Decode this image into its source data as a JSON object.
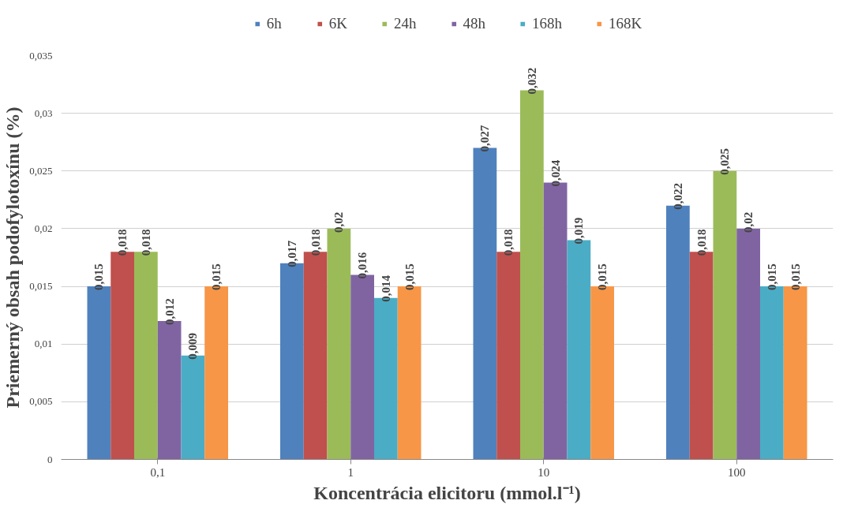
{
  "chart_data": {
    "type": "bar",
    "xlabel": "Koncentrácia elicitoru (mmol.l⁻¹)",
    "ylabel": "Priemerný obsah podofylotoxínu (%)",
    "categories": [
      "0,1",
      "1",
      "10",
      "100"
    ],
    "series": [
      {
        "name": "6h",
        "color": "#4f81bd",
        "values": [
          0.015,
          0.017,
          0.027,
          0.022
        ],
        "value_labels": [
          "0,015",
          "0,017",
          "0,027",
          "0,022"
        ]
      },
      {
        "name": "6K",
        "color": "#c0504d",
        "values": [
          0.018,
          0.018,
          0.018,
          0.018
        ],
        "value_labels": [
          "0,018",
          "0,018",
          "0,018",
          "0,018"
        ]
      },
      {
        "name": "24h",
        "color": "#9bbb59",
        "values": [
          0.018,
          0.02,
          0.032,
          0.025
        ],
        "value_labels": [
          "0,018",
          "0,02",
          "0,032",
          "0,025"
        ]
      },
      {
        "name": "48h",
        "color": "#8064a2",
        "values": [
          0.012,
          0.016,
          0.024,
          0.02
        ],
        "value_labels": [
          "0,012",
          "0,016",
          "0,024",
          "0,02"
        ]
      },
      {
        "name": "168h",
        "color": "#4bacc6",
        "values": [
          0.009,
          0.014,
          0.019,
          0.015
        ],
        "value_labels": [
          "0,009",
          "0,014",
          "0,019",
          "0,015"
        ]
      },
      {
        "name": "168K",
        "color": "#f79646",
        "values": [
          0.015,
          0.015,
          0.015,
          0.015
        ],
        "value_labels": [
          "0,015",
          "0,015",
          "0,015",
          "0,015"
        ]
      }
    ],
    "ylim": [
      0,
      0.035
    ],
    "yticks": [
      {
        "value": 0,
        "label": "0"
      },
      {
        "value": 0.005,
        "label": "0,005"
      },
      {
        "value": 0.01,
        "label": "0,01"
      },
      {
        "value": 0.015,
        "label": "0,015"
      },
      {
        "value": 0.02,
        "label": "0,02"
      },
      {
        "value": 0.025,
        "label": "0,025"
      },
      {
        "value": 0.03,
        "label": "0,03"
      },
      {
        "value": 0.035,
        "label": "0,035"
      }
    ],
    "grid": "y",
    "legend": "top"
  }
}
